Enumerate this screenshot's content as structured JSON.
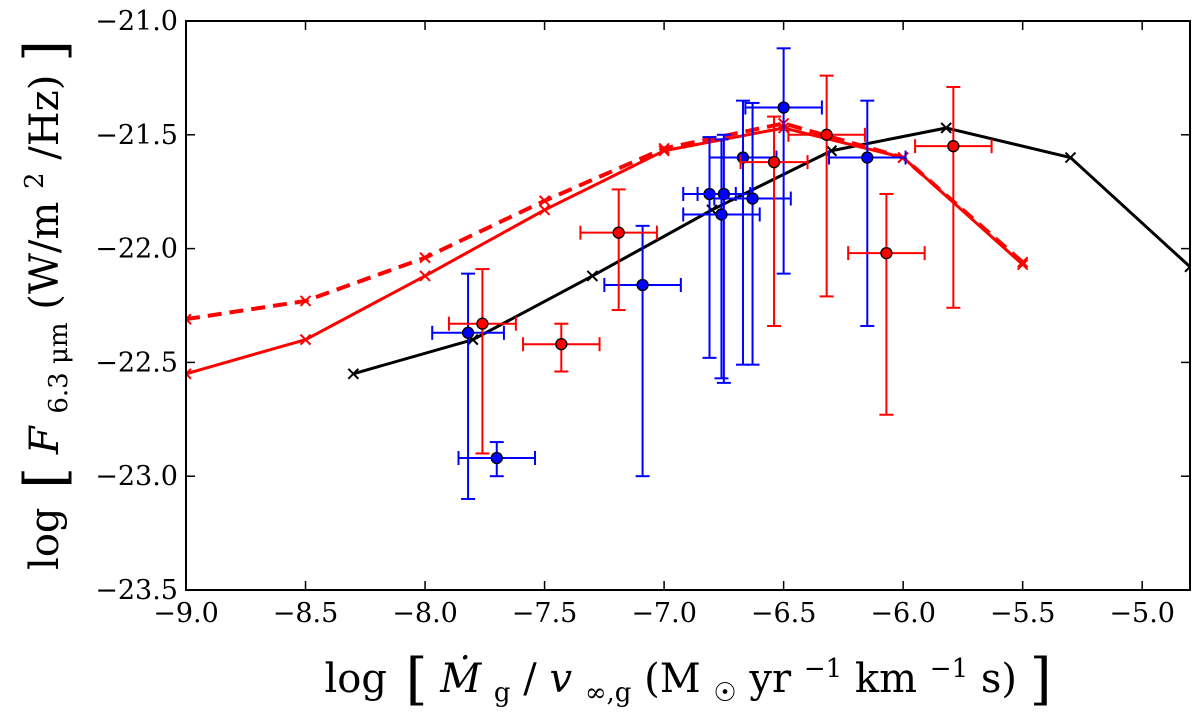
{
  "chart_data": {
    "type": "scatter",
    "title": "",
    "xlabel_parts": {
      "log": "log",
      "lbracket": "[",
      "mdot": "Ṁ",
      "sub_g1": "g",
      "slash": "/",
      "v": "v",
      "sub_inf": "∞,g",
      "open_paren": " (M",
      "sun": "☉",
      "yr": " yr",
      "exp1": "−1",
      "km": " km",
      "exp2": "−1",
      "s_close": " s)",
      "rbracket": "]"
    },
    "ylabel_parts": {
      "log": "log",
      "lbracket": "[",
      "F": "F",
      "sub": "6.3 μm",
      "units_open": " (W/m",
      "sup": "2",
      "units_close": "/Hz)",
      "rbracket": "]"
    },
    "xlim": [
      -9.0,
      -4.8
    ],
    "ylim": [
      -23.5,
      -21.0
    ],
    "xticks": [
      -9.0,
      -8.5,
      -8.0,
      -7.5,
      -7.0,
      -6.5,
      -6.0,
      -5.5,
      -5.0
    ],
    "xtick_labels": [
      "−9.0",
      "−8.5",
      "−8.0",
      "−7.5",
      "−7.0",
      "−6.5",
      "−6.0",
      "−5.5",
      "−5.0"
    ],
    "yticks": [
      -21.0,
      -21.5,
      -22.0,
      -22.5,
      -23.0,
      -23.5
    ],
    "ytick_labels": [
      "−21.0",
      "−21.5",
      "−22.0",
      "−22.5",
      "−23.0",
      "−23.5"
    ],
    "grid": false,
    "legend": false,
    "series": [
      {
        "kind": "line",
        "color": "#000000",
        "linestyle": "solid",
        "marker": "x",
        "x": [
          -8.3,
          -7.8,
          -7.3,
          -6.8,
          -6.3,
          -5.82,
          -5.3,
          -4.8
        ],
        "y": [
          -22.55,
          -22.4,
          -22.12,
          -21.83,
          -21.57,
          -21.47,
          -21.6,
          -22.08
        ]
      },
      {
        "kind": "line",
        "color": "#ff0000",
        "linestyle": "solid",
        "marker": "x",
        "x": [
          -9.0,
          -8.5,
          -8.0,
          -7.5,
          -7.0,
          -6.5,
          -6.0,
          -5.5
        ],
        "y": [
          -22.55,
          -22.4,
          -22.12,
          -21.83,
          -21.57,
          -21.47,
          -21.6,
          -22.07
        ]
      },
      {
        "kind": "line",
        "color": "#ff0000",
        "linestyle": "dashed",
        "marker": "x",
        "x": [
          -9.0,
          -8.5,
          -8.0,
          -7.5,
          -7.0,
          -6.5,
          -6.0,
          -5.5
        ],
        "y": [
          -22.31,
          -22.23,
          -22.04,
          -21.79,
          -21.56,
          -21.45,
          -21.6,
          -22.06
        ]
      },
      {
        "kind": "points",
        "color": "#0000ff",
        "face": "#0000ff",
        "points": [
          {
            "x": -7.82,
            "y": -22.37,
            "xerr": 0.15,
            "yerr": [
              0.73,
              0.26
            ]
          },
          {
            "x": -7.7,
            "y": -22.92,
            "xerr": 0.16,
            "yerr": [
              0.08,
              0.07
            ]
          },
          {
            "x": -7.09,
            "y": -22.16,
            "xerr": 0.16,
            "yerr": [
              0.84,
              0.26
            ]
          },
          {
            "x": -6.81,
            "y": -21.76,
            "xerr": 0.11,
            "yerr": [
              0.72,
              0.25
            ]
          },
          {
            "x": -6.76,
            "y": -21.85,
            "xerr": 0.16,
            "yerr": [
              0.72,
              0.33
            ]
          },
          {
            "x": -6.75,
            "y": -21.76,
            "xerr": 0.11,
            "yerr": [
              0.83,
              0.26
            ]
          },
          {
            "x": -6.67,
            "y": -21.6,
            "xerr": 0.14,
            "yerr": [
              0.91,
              0.25
            ]
          },
          {
            "x": -6.63,
            "y": -21.78,
            "xerr": 0.16,
            "yerr": [
              0.73,
              0.42
            ]
          },
          {
            "x": -6.5,
            "y": -21.38,
            "xerr": 0.16,
            "yerr": [
              0.73,
              0.26
            ]
          },
          {
            "x": -6.15,
            "y": -21.6,
            "xerr": 0.16,
            "yerr": [
              0.74,
              0.25
            ]
          }
        ]
      },
      {
        "kind": "points",
        "color": "#ff0000",
        "face": "#ff0000",
        "points": [
          {
            "x": -7.76,
            "y": -22.33,
            "xerr": 0.14,
            "yerr": [
              0.57,
              0.24
            ]
          },
          {
            "x": -7.43,
            "y": -22.42,
            "xerr": 0.16,
            "yerr": [
              0.12,
              0.09
            ]
          },
          {
            "x": -7.19,
            "y": -21.93,
            "xerr": 0.16,
            "yerr": [
              0.34,
              0.19
            ]
          },
          {
            "x": -6.54,
            "y": -21.62,
            "xerr": 0.14,
            "yerr": [
              0.72,
              0.2
            ]
          },
          {
            "x": -6.32,
            "y": -21.5,
            "xerr": 0.16,
            "yerr": [
              0.71,
              0.26
            ]
          },
          {
            "x": -6.07,
            "y": -22.02,
            "xerr": 0.16,
            "yerr": [
              0.71,
              0.26
            ]
          },
          {
            "x": -5.79,
            "y": -21.55,
            "xerr": 0.16,
            "yerr": [
              0.71,
              0.26
            ]
          }
        ]
      }
    ]
  }
}
